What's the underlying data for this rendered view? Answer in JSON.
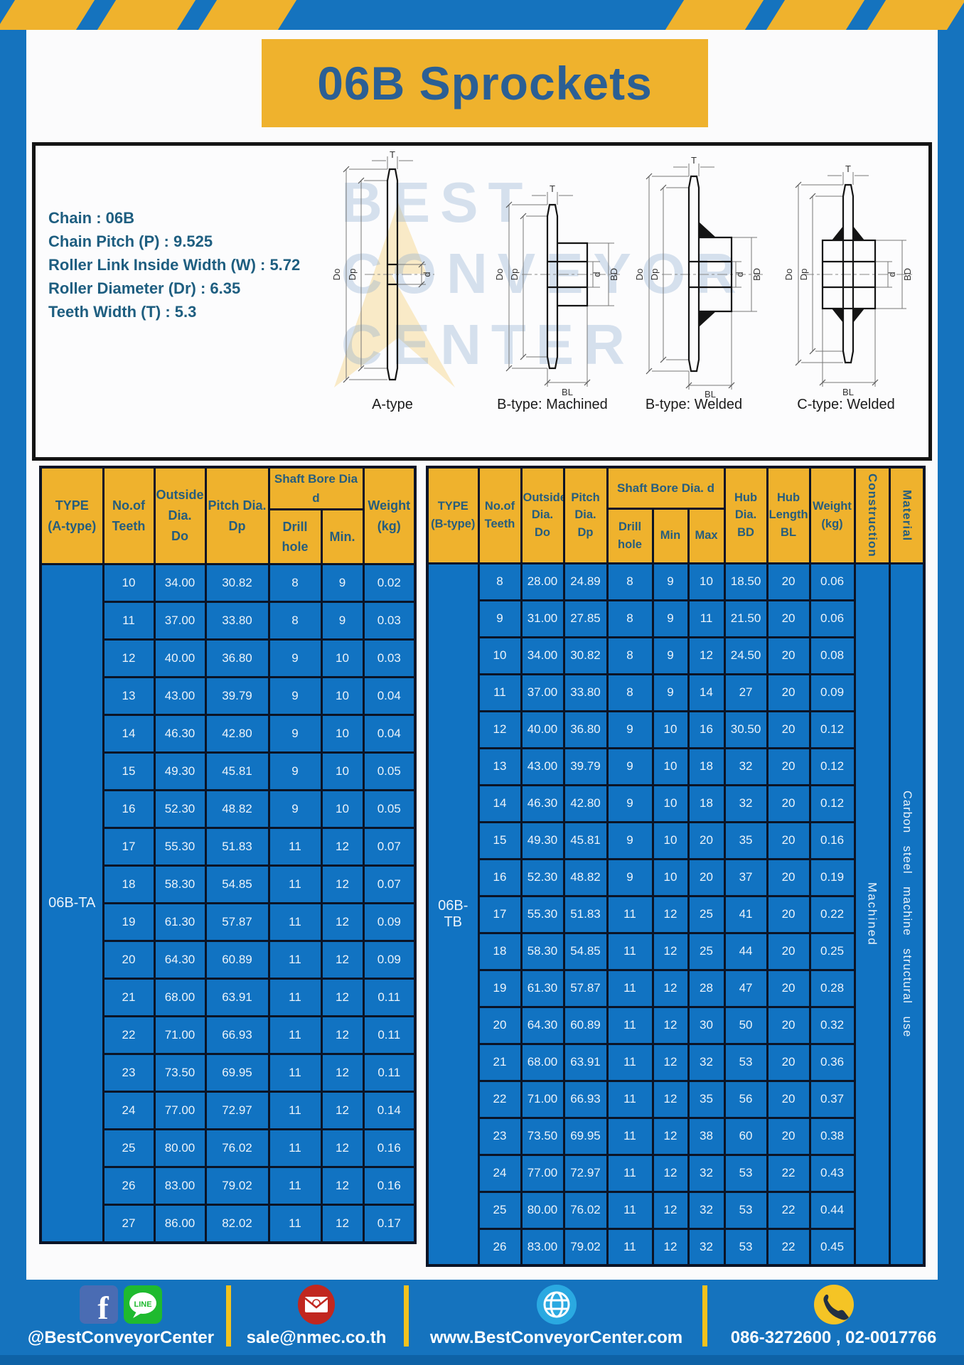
{
  "header": {
    "title": "06B Sprockets"
  },
  "specs": {
    "lines": [
      "Chain : 06B",
      "Chain Pitch (P) : 9.525",
      "Roller Link Inside Width (W) : 5.72",
      "Roller Diameter (Dr) : 6.35",
      "Teeth Width (T) : 5.3"
    ]
  },
  "diagram": {
    "types": {
      "a": "A-type",
      "b_machined": "B-type: Machined",
      "b_welded": "B-type: Welded",
      "c_welded": "C-type: Welded"
    },
    "dims": {
      "t": "T",
      "do": "Do",
      "dp": "Dp",
      "d": "d",
      "bd": "BD",
      "bl": "BL"
    },
    "watermark": {
      "line1": "BEST",
      "line2": "CONVEYOR",
      "line3": "CENTER"
    }
  },
  "table_a": {
    "headers": {
      "type": "TYPE\n(A-type)",
      "teeth": "No.of\nTeeth",
      "outside": "Outside\nDia.\nDo",
      "pitch": "Pitch Dia.\nDp",
      "shaft_bore": "Shaft Bore Dia d",
      "drill": "Drill hole",
      "min": "Min.",
      "weight": "Weight\n(kg)"
    },
    "type_label": "06B-TA",
    "rows": [
      [
        "10",
        "34.00",
        "30.82",
        "8",
        "9",
        "0.02"
      ],
      [
        "11",
        "37.00",
        "33.80",
        "8",
        "9",
        "0.03"
      ],
      [
        "12",
        "40.00",
        "36.80",
        "9",
        "10",
        "0.03"
      ],
      [
        "13",
        "43.00",
        "39.79",
        "9",
        "10",
        "0.04"
      ],
      [
        "14",
        "46.30",
        "42.80",
        "9",
        "10",
        "0.04"
      ],
      [
        "15",
        "49.30",
        "45.81",
        "9",
        "10",
        "0.05"
      ],
      [
        "16",
        "52.30",
        "48.82",
        "9",
        "10",
        "0.05"
      ],
      [
        "17",
        "55.30",
        "51.83",
        "11",
        "12",
        "0.07"
      ],
      [
        "18",
        "58.30",
        "54.85",
        "11",
        "12",
        "0.07"
      ],
      [
        "19",
        "61.30",
        "57.87",
        "11",
        "12",
        "0.09"
      ],
      [
        "20",
        "64.30",
        "60.89",
        "11",
        "12",
        "0.09"
      ],
      [
        "21",
        "68.00",
        "63.91",
        "11",
        "12",
        "0.11"
      ],
      [
        "22",
        "71.00",
        "66.93",
        "11",
        "12",
        "0.11"
      ],
      [
        "23",
        "73.50",
        "69.95",
        "11",
        "12",
        "0.11"
      ],
      [
        "24",
        "77.00",
        "72.97",
        "11",
        "12",
        "0.14"
      ],
      [
        "25",
        "80.00",
        "76.02",
        "11",
        "12",
        "0.16"
      ],
      [
        "26",
        "83.00",
        "79.02",
        "11",
        "12",
        "0.16"
      ],
      [
        "27",
        "86.00",
        "82.02",
        "11",
        "12",
        "0.17"
      ]
    ]
  },
  "table_b": {
    "headers": {
      "type": "TYPE\n(B-type)",
      "teeth": "No.of\nTeeth",
      "outside": "Outside\nDia.\nDo",
      "pitch": "Pitch\nDia.\nDp",
      "shaft_bore": "Shaft Bore Dia. d",
      "drill": "Drill hole",
      "min": "Min",
      "max": "Max",
      "hub_dia": "Hub\nDia.\nBD",
      "hub_len": "Hub\nLength\nBL",
      "weight": "Weight\n(kg)",
      "construction": "Construction",
      "material": "Material"
    },
    "type_label": "06B-TB",
    "construction_value": "Machined",
    "material_value": "Carbon steel machine structural use",
    "rows": [
      [
        "8",
        "28.00",
        "24.89",
        "8",
        "9",
        "10",
        "18.50",
        "20",
        "0.06"
      ],
      [
        "9",
        "31.00",
        "27.85",
        "8",
        "9",
        "11",
        "21.50",
        "20",
        "0.06"
      ],
      [
        "10",
        "34.00",
        "30.82",
        "8",
        "9",
        "12",
        "24.50",
        "20",
        "0.08"
      ],
      [
        "11",
        "37.00",
        "33.80",
        "8",
        "9",
        "14",
        "27",
        "20",
        "0.09"
      ],
      [
        "12",
        "40.00",
        "36.80",
        "9",
        "10",
        "16",
        "30.50",
        "20",
        "0.12"
      ],
      [
        "13",
        "43.00",
        "39.79",
        "9",
        "10",
        "18",
        "32",
        "20",
        "0.12"
      ],
      [
        "14",
        "46.30",
        "42.80",
        "9",
        "10",
        "18",
        "32",
        "20",
        "0.12"
      ],
      [
        "15",
        "49.30",
        "45.81",
        "9",
        "10",
        "20",
        "35",
        "20",
        "0.16"
      ],
      [
        "16",
        "52.30",
        "48.82",
        "9",
        "10",
        "20",
        "37",
        "20",
        "0.19"
      ],
      [
        "17",
        "55.30",
        "51.83",
        "11",
        "12",
        "25",
        "41",
        "20",
        "0.22"
      ],
      [
        "18",
        "58.30",
        "54.85",
        "11",
        "12",
        "25",
        "44",
        "20",
        "0.25"
      ],
      [
        "19",
        "61.30",
        "57.87",
        "11",
        "12",
        "28",
        "47",
        "20",
        "0.28"
      ],
      [
        "20",
        "64.30",
        "60.89",
        "11",
        "12",
        "30",
        "50",
        "20",
        "0.32"
      ],
      [
        "21",
        "68.00",
        "63.91",
        "11",
        "12",
        "32",
        "53",
        "20",
        "0.36"
      ],
      [
        "22",
        "71.00",
        "66.93",
        "11",
        "12",
        "35",
        "56",
        "20",
        "0.37"
      ],
      [
        "23",
        "73.50",
        "69.95",
        "11",
        "12",
        "38",
        "60",
        "20",
        "0.38"
      ],
      [
        "24",
        "77.00",
        "72.97",
        "11",
        "12",
        "32",
        "53",
        "22",
        "0.43"
      ],
      [
        "25",
        "80.00",
        "76.02",
        "11",
        "12",
        "32",
        "53",
        "22",
        "0.44"
      ],
      [
        "26",
        "83.00",
        "79.02",
        "11",
        "12",
        "32",
        "53",
        "22",
        "0.45"
      ]
    ]
  },
  "footer": {
    "social_text": "@BestConveyorCenter",
    "email": "sale@nmec.co.th",
    "website": "www.BestConveyorCenter.com",
    "phones": "086-3272600 , 02-0017766",
    "line_label": "LINE",
    "icons": [
      "facebook-icon",
      "line-icon",
      "email-icon",
      "globe-icon",
      "phone-icon"
    ]
  },
  "colors": {
    "frame_blue": "#1573BE",
    "cell_blue": "#1173C2",
    "accent_yellow": "#EFB22D",
    "divider_yellow": "#F2C21E",
    "border_dark": "#0B1426",
    "header_text": "#265D7D",
    "title_text": "#2B5F94",
    "spec_text": "#1E5E80",
    "footer_strip": "#0E62A6"
  }
}
